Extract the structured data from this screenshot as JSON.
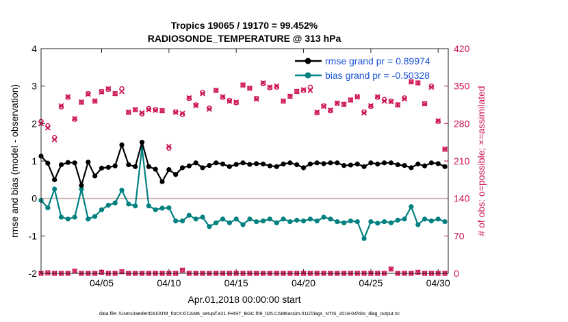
{
  "chart_data": {
    "type": "line",
    "title": "Tropics 19065 / 19170 = 99.452%",
    "subtitle": "RADIOSONDE_TEMPERATURE @ 313 hPa",
    "xlabel": "Apr.01,2018 00:00:00 start",
    "ylabel": "rmse and bias (model - observation)",
    "y2label": "# of obs: o=possible; ×=assimilated",
    "footnote": "data file: /Users/raeder/DAI/ATM_forcXX/CAM6_setup/f.e21.FHIST_BGC.f09_025.CAM6assim.011/Diags_NTrS_2018-04/obs_diag_output.nc",
    "xlim": [
      0.5,
      30.75
    ],
    "ylim": [
      -2,
      4
    ],
    "y2lim": [
      0,
      420
    ],
    "x_ticks": [
      5,
      10,
      15,
      20,
      25,
      30
    ],
    "x_tick_labels": [
      "04/05",
      "04/10",
      "04/15",
      "04/20",
      "04/25",
      "04/30"
    ],
    "y_ticks": [
      -2,
      -1,
      0,
      1,
      2,
      3,
      4
    ],
    "y_tick_labels": [
      "-2",
      "-1",
      "0",
      "1",
      "2",
      "3",
      "4"
    ],
    "y2_ticks": [
      0,
      70,
      140,
      210,
      280,
      350,
      420
    ],
    "y2_tick_labels": [
      "0",
      "70",
      "140",
      "210",
      "280",
      "350",
      "420"
    ],
    "colors": {
      "rmse": "#000000",
      "bias": "#008080",
      "obs": "#cc1155",
      "zero_line": "#c8a8a8",
      "legend_text": "#1a52d9"
    },
    "legend": {
      "placement": "top-right"
    },
    "series": [
      {
        "name": "rmse grand pr = 0.89974",
        "color": "#000000",
        "x": [
          0.5,
          1,
          1.5,
          2,
          2.5,
          3,
          3.5,
          4,
          4.5,
          5,
          5.5,
          6,
          6.5,
          7,
          7.5,
          8,
          8.5,
          9,
          9.5,
          10,
          10.5,
          11,
          11.5,
          12,
          12.5,
          13,
          13.5,
          14,
          14.5,
          15,
          15.5,
          16,
          16.5,
          17,
          17.5,
          18,
          18.5,
          19,
          19.5,
          20,
          20.5,
          21,
          21.5,
          22,
          22.5,
          23,
          23.5,
          24,
          24.5,
          25,
          25.5,
          26,
          26.5,
          27,
          27.5,
          28,
          28.5,
          29,
          29.5,
          30,
          30.5
        ],
        "values": [
          1.13,
          0.94,
          0.5,
          0.9,
          0.96,
          0.95,
          0.35,
          0.97,
          0.6,
          0.81,
          0.83,
          0.87,
          1.43,
          0.9,
          0.85,
          1.5,
          0.85,
          0.78,
          0.45,
          0.77,
          0.64,
          0.82,
          0.87,
          0.95,
          0.82,
          0.88,
          0.95,
          0.92,
          0.85,
          0.91,
          0.95,
          0.91,
          0.93,
          0.92,
          0.87,
          0.85,
          0.92,
          0.95,
          0.9,
          0.82,
          0.92,
          0.95,
          0.93,
          0.95,
          0.95,
          0.88,
          0.89,
          0.92,
          0.85,
          0.95,
          0.92,
          0.95,
          0.95,
          0.9,
          0.88,
          0.82,
          0.92,
          0.87,
          0.95,
          0.93,
          0.85
        ]
      },
      {
        "name": "bias grand pr = -0.50328",
        "color": "#008080",
        "x": [
          0.5,
          1,
          1.5,
          2,
          2.5,
          3,
          3.5,
          4,
          4.5,
          5,
          5.5,
          6,
          6.5,
          7,
          7.5,
          8,
          8.5,
          9,
          9.5,
          10,
          10.5,
          11,
          11.5,
          12,
          12.5,
          13,
          13.5,
          14,
          14.5,
          15,
          15.5,
          16,
          16.5,
          17,
          17.5,
          18,
          18.5,
          19,
          19.5,
          20,
          20.5,
          21,
          21.5,
          22,
          22.5,
          23,
          23.5,
          24,
          24.5,
          25,
          25.5,
          26,
          26.5,
          27,
          27.5,
          28,
          28.5,
          29,
          29.5,
          30,
          30.5
        ],
        "values": [
          -0.05,
          -0.25,
          0.25,
          -0.5,
          -0.55,
          -0.5,
          0.25,
          -0.55,
          -0.48,
          -0.3,
          -0.18,
          -0.12,
          0.22,
          -0.15,
          -0.2,
          1.35,
          -0.2,
          -0.3,
          -0.26,
          -0.25,
          -0.6,
          -0.6,
          -0.45,
          -0.55,
          -0.5,
          -0.75,
          -0.65,
          -0.55,
          -0.65,
          -0.55,
          -0.7,
          -0.55,
          -0.62,
          -0.6,
          -0.55,
          -0.65,
          -0.55,
          -0.62,
          -0.58,
          -0.6,
          -0.55,
          -0.6,
          -0.5,
          -0.55,
          -0.62,
          -0.65,
          -0.6,
          -0.62,
          -1.07,
          -0.62,
          -0.66,
          -0.62,
          -0.65,
          -0.58,
          -0.55,
          -0.22,
          -0.7,
          -0.55,
          -0.6,
          -0.55,
          -0.62
        ]
      }
    ],
    "obs_possible": {
      "x": [
        0.5,
        1,
        1.5,
        2,
        2.5,
        3,
        3.5,
        4,
        4.5,
        5,
        5.5,
        6,
        6.5,
        7,
        7.5,
        8,
        8.5,
        9,
        9.5,
        10,
        10.5,
        11,
        11.5,
        12,
        12.5,
        13,
        13.5,
        14,
        14.5,
        15,
        15.5,
        16,
        16.5,
        17,
        17.5,
        18,
        18.5,
        19,
        19.5,
        20,
        20.5,
        21,
        21.5,
        22,
        22.5,
        23,
        23.5,
        24,
        24.5,
        25,
        25.5,
        26,
        26.5,
        27,
        27.5,
        28,
        28.5,
        29,
        29.5,
        30,
        30.5
      ],
      "values": [
        284,
        276,
        254,
        311,
        329,
        288,
        320,
        336,
        322,
        340,
        344,
        336,
        345,
        301,
        306,
        298,
        308,
        306,
        304,
        234,
        302,
        297,
        327,
        315,
        338,
        309,
        342,
        329,
        323,
        319,
        352,
        346,
        327,
        355,
        347,
        348,
        322,
        331,
        340,
        342,
        348,
        300,
        313,
        304,
        318,
        316,
        324,
        330,
        302,
        312,
        329,
        325,
        322,
        315,
        328,
        358,
        356,
        317,
        350,
        284,
        232
      ]
    },
    "obs_assimilated": {
      "x": [
        0.5,
        1,
        1.5,
        2,
        2.5,
        3,
        3.5,
        4,
        4.5,
        5,
        5.5,
        6,
        6.5,
        7,
        7.5,
        8,
        8.5,
        9,
        9.5,
        10,
        10.5,
        11,
        11.5,
        12,
        12.5,
        13,
        13.5,
        14,
        14.5,
        15,
        15.5,
        16,
        16.5,
        17,
        17.5,
        18,
        18.5,
        19,
        19.5,
        20,
        20.5,
        21,
        21.5,
        22,
        22.5,
        23,
        23.5,
        24,
        24.5,
        25,
        25.5,
        26,
        26.5,
        27,
        27.5,
        28,
        28.5,
        29,
        29.5,
        30,
        30.5
      ],
      "values": [
        280,
        272,
        250,
        313,
        330,
        289,
        320,
        335,
        322,
        339,
        345,
        336,
        340,
        301,
        306,
        300,
        306,
        305,
        304,
        237,
        301,
        299,
        328,
        314,
        336,
        307,
        342,
        330,
        322,
        320,
        352,
        346,
        326,
        356,
        348,
        350,
        322,
        331,
        340,
        343,
        342,
        301,
        312,
        305,
        318,
        316,
        324,
        330,
        300,
        313,
        330,
        322,
        321,
        315,
        326,
        358,
        356,
        317,
        348,
        285,
        232
      ]
    },
    "obs_bottom": {
      "x": [
        0.5,
        1,
        1.5,
        2,
        2.5,
        3,
        3.5,
        4,
        4.5,
        5,
        5.5,
        6,
        6.5,
        7,
        7.5,
        8,
        8.5,
        9,
        9.5,
        10,
        10.5,
        11,
        11.5,
        12,
        12.5,
        13,
        13.5,
        14,
        14.5,
        15,
        15.5,
        16,
        16.5,
        17,
        17.5,
        18,
        18.5,
        19,
        19.5,
        20,
        20.5,
        21,
        21.5,
        22,
        22.5,
        23,
        23.5,
        24,
        24.5,
        25,
        25.5,
        26,
        26.5,
        27,
        27.5,
        28,
        28.5,
        29,
        29.5,
        30,
        30.5
      ],
      "values": [
        0,
        1,
        0,
        0,
        0,
        4,
        0,
        0,
        0,
        2,
        0,
        0,
        3,
        0,
        0,
        0,
        0,
        0,
        0,
        0,
        0,
        6,
        0,
        0,
        0,
        0,
        0,
        0,
        0,
        0,
        0,
        0,
        0,
        0,
        0,
        0,
        0,
        0,
        0,
        0,
        0,
        0,
        0,
        0,
        0,
        0,
        0,
        0,
        0,
        0,
        0,
        0,
        8,
        0,
        0,
        0,
        2,
        0,
        0,
        0,
        0
      ]
    }
  }
}
